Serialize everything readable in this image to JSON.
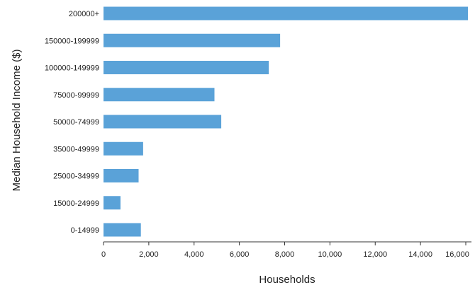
{
  "chart_data": {
    "type": "bar",
    "orientation": "horizontal",
    "title": "",
    "xlabel": "Households",
    "ylabel": "Median Household Income ($)",
    "categories": [
      "200000+",
      "150000-199999",
      "100000-149999",
      "75000-99999",
      "50000-74999",
      "35000-49999",
      "25000-34999",
      "15000-24999",
      "0-14999"
    ],
    "values": [
      16200,
      7800,
      7300,
      4900,
      5200,
      1750,
      1550,
      750,
      1650
    ],
    "xlim": [
      0,
      16000
    ],
    "xticks": [
      0,
      2000,
      4000,
      6000,
      8000,
      10000,
      12000,
      14000,
      16000
    ],
    "xtick_labels": [
      "0",
      "2,000",
      "4,000",
      "6,000",
      "8,000",
      "10,000",
      "12,000",
      "14,000",
      "16,000"
    ],
    "bar_color": "#5aa2d8",
    "grid": false,
    "legend": "none"
  }
}
